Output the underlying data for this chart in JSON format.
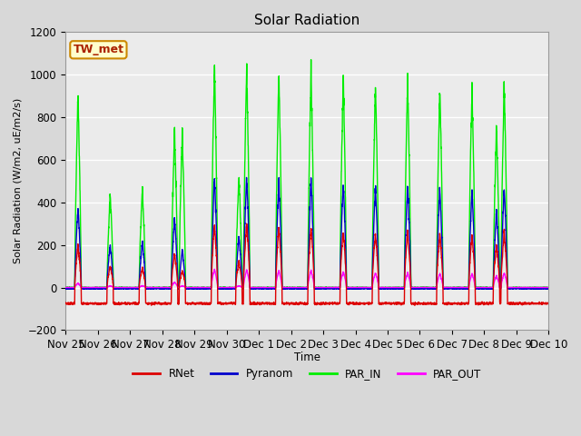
{
  "title": "Solar Radiation",
  "ylabel": "Solar Radiation (W/m2, uE/m2/s)",
  "xlabel": "Time",
  "ylim": [
    -200,
    1200
  ],
  "plot_bg_color": "#ebebeb",
  "grid_color": "white",
  "annotation_text": "TW_met",
  "annotation_bg": "#ffffcc",
  "annotation_border": "#cc8800",
  "series": {
    "RNet": {
      "color": "#dd0000",
      "lw": 1.0
    },
    "Pyranom": {
      "color": "#0000cc",
      "lw": 1.0
    },
    "PAR_IN": {
      "color": "#00ee00",
      "lw": 1.0
    },
    "PAR_OUT": {
      "color": "#ff00ff",
      "lw": 1.0
    }
  },
  "xtick_labels": [
    "Nov 25",
    "Nov 26",
    "Nov 27",
    "Nov 28",
    "Nov 29",
    "Nov 30",
    "Dec 1",
    "Dec 2",
    "Dec 3",
    "Dec 4",
    "Dec 5",
    "Dec 6",
    "Dec 7",
    "Dec 8",
    "Dec 9",
    "Dec 10"
  ],
  "par_in_peaks": [
    920,
    0,
    440,
    0,
    470,
    0,
    740,
    720,
    0,
    1050,
    520,
    1030,
    0,
    1010,
    0,
    1010,
    0,
    990,
    0,
    960,
    0,
    980,
    0,
    930,
    0,
    940,
    750,
    960
  ],
  "pyranom_peaks": [
    375,
    0,
    200,
    0,
    215,
    0,
    330,
    175,
    0,
    520,
    240,
    520,
    0,
    495,
    0,
    505,
    0,
    490,
    0,
    475,
    0,
    480,
    0,
    465,
    0,
    455,
    360,
    470
  ],
  "rnet_peaks": [
    200,
    0,
    100,
    0,
    90,
    0,
    160,
    80,
    0,
    295,
    120,
    300,
    0,
    280,
    0,
    280,
    0,
    265,
    0,
    255,
    0,
    265,
    0,
    250,
    0,
    245,
    195,
    255
  ],
  "par_out_peaks": [
    20,
    0,
    8,
    0,
    8,
    0,
    25,
    8,
    0,
    85,
    8,
    85,
    0,
    80,
    0,
    80,
    0,
    75,
    0,
    70,
    0,
    70,
    0,
    65,
    0,
    65,
    55,
    70
  ],
  "n_days": 15,
  "ppd": 288,
  "night_rnet": -75,
  "night_pyranom": -5,
  "night_par_out": 0
}
